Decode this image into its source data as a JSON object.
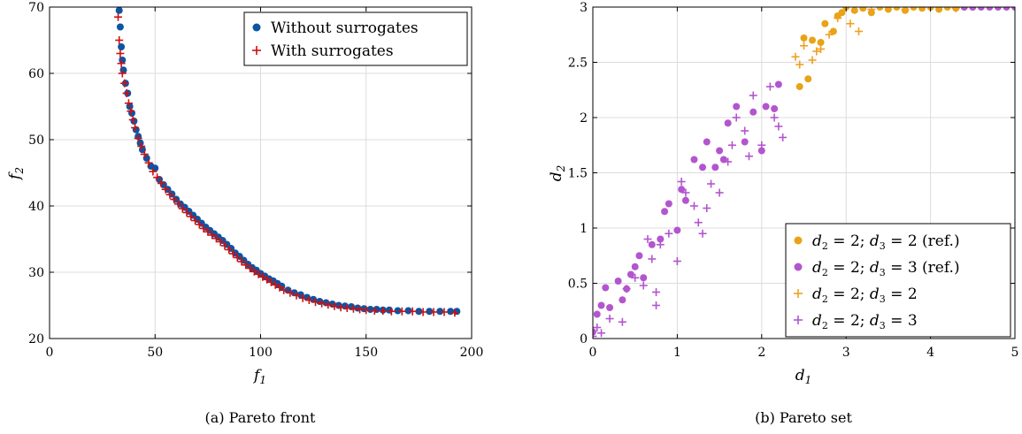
{
  "chart_data": [
    {
      "type": "scatter",
      "caption": "(a) Pareto front",
      "xlabel": "f1",
      "ylabel": "f2",
      "xlim": [
        0,
        200
      ],
      "ylim": [
        20,
        70
      ],
      "xticks": [
        "0",
        "50",
        "100",
        "150",
        "200"
      ],
      "yticks": [
        "20",
        "30",
        "40",
        "50",
        "60",
        "70"
      ],
      "grid": true,
      "legend_position": "top-right",
      "series": [
        {
          "name": "Without surrogates",
          "marker": "dot",
          "color": "#0b55a5",
          "points": [
            [
              33,
              69.5
            ],
            [
              33.5,
              67
            ],
            [
              34,
              64
            ],
            [
              34.5,
              62
            ],
            [
              35,
              60.5
            ],
            [
              36,
              58.5
            ],
            [
              37,
              57
            ],
            [
              38,
              55
            ],
            [
              39,
              54
            ],
            [
              40,
              52.8
            ],
            [
              41,
              51.5
            ],
            [
              42,
              50.5
            ],
            [
              43,
              49.5
            ],
            [
              44,
              48.5
            ],
            [
              46,
              47.2
            ],
            [
              48,
              46
            ],
            [
              50,
              45.7
            ],
            [
              52,
              44
            ],
            [
              54,
              43.2
            ],
            [
              56,
              42.5
            ],
            [
              58,
              41.8
            ],
            [
              60,
              41
            ],
            [
              62,
              40.3
            ],
            [
              64,
              39.8
            ],
            [
              66,
              39.2
            ],
            [
              68,
              38.6
            ],
            [
              70,
              38
            ],
            [
              72,
              37.4
            ],
            [
              74,
              36.8
            ],
            [
              76,
              36.3
            ],
            [
              78,
              35.8
            ],
            [
              80,
              35.3
            ],
            [
              82,
              34.8
            ],
            [
              84,
              34.2
            ],
            [
              86,
              33.6
            ],
            [
              88,
              32.9
            ],
            [
              90,
              32.4
            ],
            [
              92,
              31.8
            ],
            [
              94,
              31.2
            ],
            [
              96,
              30.7
            ],
            [
              98,
              30.3
            ],
            [
              100,
              29.8
            ],
            [
              102,
              29.4
            ],
            [
              104,
              29
            ],
            [
              106,
              28.7
            ],
            [
              108,
              28.3
            ],
            [
              110,
              27.9
            ],
            [
              113,
              27.3
            ],
            [
              116,
              26.9
            ],
            [
              119,
              26.6
            ],
            [
              122,
              26.2
            ],
            [
              125,
              25.9
            ],
            [
              128,
              25.6
            ],
            [
              131,
              25.4
            ],
            [
              134,
              25.2
            ],
            [
              137,
              25.0
            ],
            [
              140,
              24.9
            ],
            [
              143,
              24.8
            ],
            [
              146,
              24.6
            ],
            [
              149,
              24.5
            ],
            [
              152,
              24.4
            ],
            [
              155,
              24.4
            ],
            [
              158,
              24.3
            ],
            [
              161,
              24.3
            ],
            [
              165,
              24.2
            ],
            [
              170,
              24.2
            ],
            [
              175,
              24.1
            ],
            [
              180,
              24.1
            ],
            [
              185,
              24.1
            ],
            [
              190,
              24.1
            ],
            [
              193,
              24.1
            ]
          ]
        },
        {
          "name": "With surrogates",
          "marker": "plus",
          "color": "#cc1111",
          "points": [
            [
              32.5,
              68.5
            ],
            [
              33,
              65
            ],
            [
              33.5,
              63
            ],
            [
              34,
              61.5
            ],
            [
              34.5,
              60
            ],
            [
              35.5,
              58.5
            ],
            [
              36.5,
              57
            ],
            [
              37.5,
              55.5
            ],
            [
              38.5,
              54.3
            ],
            [
              39.5,
              53
            ],
            [
              40.5,
              51.8
            ],
            [
              42,
              50.2
            ],
            [
              43.5,
              49
            ],
            [
              45,
              47.8
            ],
            [
              47,
              46.5
            ],
            [
              49,
              45.2
            ],
            [
              51,
              44.3
            ],
            [
              53,
              43.4
            ],
            [
              55,
              42.5
            ],
            [
              57,
              41.7
            ],
            [
              59,
              41
            ],
            [
              61,
              40.3
            ],
            [
              63,
              39.6
            ],
            [
              65,
              39
            ],
            [
              67,
              38.4
            ],
            [
              69,
              37.8
            ],
            [
              71,
              37.2
            ],
            [
              73,
              36.6
            ],
            [
              75,
              36.1
            ],
            [
              77,
              35.6
            ],
            [
              79,
              35.1
            ],
            [
              81,
              34.6
            ],
            [
              83,
              34
            ],
            [
              85,
              33.4
            ],
            [
              87,
              32.8
            ],
            [
              89,
              32.2
            ],
            [
              91,
              31.6
            ],
            [
              93,
              31.1
            ],
            [
              95,
              30.6
            ],
            [
              97,
              30.1
            ],
            [
              99,
              29.7
            ],
            [
              101,
              29.3
            ],
            [
              103,
              28.9
            ],
            [
              105,
              28.5
            ],
            [
              107,
              28.1
            ],
            [
              109,
              27.7
            ],
            [
              111,
              27.3
            ],
            [
              114,
              26.9
            ],
            [
              117,
              26.5
            ],
            [
              120,
              26.1
            ],
            [
              123,
              25.8
            ],
            [
              126,
              25.5
            ],
            [
              129,
              25.3
            ],
            [
              132,
              25.1
            ],
            [
              135,
              24.9
            ],
            [
              138,
              24.7
            ],
            [
              141,
              24.6
            ],
            [
              144,
              24.5
            ],
            [
              147,
              24.4
            ],
            [
              150,
              24.3
            ],
            [
              154,
              24.2
            ],
            [
              158,
              24.2
            ],
            [
              162,
              24.1
            ],
            [
              167,
              24.1
            ],
            [
              172,
              24.1
            ],
            [
              177,
              24.0
            ],
            [
              182,
              24.0
            ],
            [
              187,
              24.0
            ],
            [
              192,
              23.9
            ]
          ]
        }
      ]
    },
    {
      "type": "scatter",
      "caption": "(b) Pareto set",
      "xlabel": "d1",
      "ylabel": "d2",
      "xlim": [
        0,
        5
      ],
      "ylim": [
        0,
        3
      ],
      "xticks": [
        "0",
        "1",
        "2",
        "3",
        "4",
        "5"
      ],
      "yticks": [
        "0",
        "0.5",
        "1",
        "1.5",
        "2",
        "2.5",
        "3"
      ],
      "grid": true,
      "legend_position": "bottom-right",
      "series": [
        {
          "name": "d2 = 2; d3 = 2 (ref.)",
          "marker": "dot",
          "color": "#e8a317",
          "points": [
            [
              2.45,
              2.28
            ],
            [
              2.55,
              2.35
            ],
            [
              2.5,
              2.72
            ],
            [
              2.6,
              2.7
            ],
            [
              2.7,
              2.68
            ],
            [
              2.75,
              2.85
            ],
            [
              2.85,
              2.78
            ],
            [
              2.9,
              2.92
            ],
            [
              2.95,
              2.95
            ],
            [
              3.0,
              3.0
            ],
            [
              3.1,
              2.97
            ],
            [
              3.2,
              2.99
            ],
            [
              3.3,
              2.95
            ],
            [
              3.4,
              3.0
            ],
            [
              3.5,
              2.98
            ],
            [
              3.6,
              3.0
            ],
            [
              3.7,
              2.97
            ],
            [
              3.8,
              3.0
            ],
            [
              3.9,
              2.99
            ],
            [
              4.0,
              3.0
            ],
            [
              4.1,
              2.98
            ],
            [
              4.2,
              3.0
            ],
            [
              4.3,
              2.99
            ],
            [
              4.4,
              3.0
            ],
            [
              4.5,
              3.0
            ]
          ]
        },
        {
          "name": "d2 = 2; d3 = 3 (ref.)",
          "marker": "dot",
          "color": "#b355cf",
          "points": [
            [
              0.0,
              0.06
            ],
            [
              0.05,
              0.22
            ],
            [
              0.1,
              0.3
            ],
            [
              0.15,
              0.46
            ],
            [
              0.2,
              0.28
            ],
            [
              0.3,
              0.52
            ],
            [
              0.35,
              0.35
            ],
            [
              0.4,
              0.45
            ],
            [
              0.45,
              0.58
            ],
            [
              0.5,
              0.65
            ],
            [
              0.55,
              0.75
            ],
            [
              0.6,
              0.55
            ],
            [
              0.7,
              0.85
            ],
            [
              0.8,
              0.9
            ],
            [
              0.85,
              1.15
            ],
            [
              0.9,
              1.22
            ],
            [
              1.0,
              0.98
            ],
            [
              1.05,
              1.35
            ],
            [
              1.1,
              1.25
            ],
            [
              1.2,
              1.62
            ],
            [
              1.3,
              1.55
            ],
            [
              1.35,
              1.78
            ],
            [
              1.45,
              1.55
            ],
            [
              1.5,
              1.7
            ],
            [
              1.55,
              1.62
            ],
            [
              1.6,
              1.95
            ],
            [
              1.7,
              2.1
            ],
            [
              1.8,
              1.78
            ],
            [
              1.9,
              2.05
            ],
            [
              2.0,
              1.7
            ],
            [
              2.05,
              2.1
            ],
            [
              2.15,
              2.08
            ],
            [
              2.2,
              2.3
            ],
            [
              4.4,
              3.0
            ],
            [
              4.5,
              3.0
            ],
            [
              4.6,
              3.0
            ],
            [
              4.7,
              3.0
            ],
            [
              4.8,
              3.0
            ],
            [
              4.9,
              3.0
            ],
            [
              5.0,
              3.0
            ]
          ]
        },
        {
          "name": "d2 = 2; d3 = 2",
          "marker": "plus",
          "color": "#f0a020",
          "points": [
            [
              2.4,
              2.55
            ],
            [
              2.45,
              2.48
            ],
            [
              2.5,
              2.65
            ],
            [
              2.6,
              2.52
            ],
            [
              2.65,
              2.6
            ],
            [
              2.7,
              2.62
            ],
            [
              2.8,
              2.75
            ],
            [
              2.9,
              2.9
            ],
            [
              3.05,
              2.85
            ],
            [
              3.15,
              2.78
            ],
            [
              3.3,
              2.98
            ],
            [
              3.5,
              3.0
            ],
            [
              3.7,
              2.98
            ],
            [
              3.9,
              3.0
            ],
            [
              4.1,
              3.0
            ],
            [
              4.3,
              2.99
            ]
          ]
        },
        {
          "name": "d2 = 2; d3 = 3",
          "marker": "plus",
          "color": "#b355cf",
          "points": [
            [
              0.0,
              0.02
            ],
            [
              0.05,
              0.1
            ],
            [
              0.1,
              0.05
            ],
            [
              0.2,
              0.18
            ],
            [
              0.35,
              0.15
            ],
            [
              0.4,
              0.45
            ],
            [
              0.5,
              0.55
            ],
            [
              0.6,
              0.48
            ],
            [
              0.65,
              0.9
            ],
            [
              0.7,
              0.72
            ],
            [
              0.75,
              0.3
            ],
            [
              0.75,
              0.42
            ],
            [
              0.8,
              0.85
            ],
            [
              0.9,
              0.95
            ],
            [
              1.0,
              0.7
            ],
            [
              1.05,
              1.42
            ],
            [
              1.1,
              1.32
            ],
            [
              1.2,
              1.2
            ],
            [
              1.25,
              1.05
            ],
            [
              1.3,
              0.95
            ],
            [
              1.35,
              1.18
            ],
            [
              1.4,
              1.4
            ],
            [
              1.5,
              1.32
            ],
            [
              1.6,
              1.6
            ],
            [
              1.65,
              1.75
            ],
            [
              1.7,
              2.0
            ],
            [
              1.8,
              1.88
            ],
            [
              1.85,
              1.65
            ],
            [
              1.9,
              2.2
            ],
            [
              2.0,
              1.75
            ],
            [
              2.1,
              2.28
            ],
            [
              2.15,
              2.0
            ],
            [
              2.2,
              1.92
            ],
            [
              2.25,
              1.82
            ]
          ]
        }
      ]
    }
  ]
}
